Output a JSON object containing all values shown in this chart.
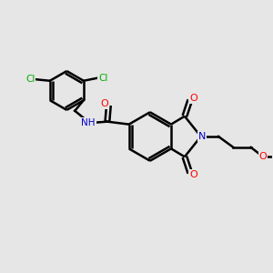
{
  "background_color": "#e6e6e6",
  "bond_color": "#000000",
  "bond_width": 1.8,
  "atom_colors": {
    "C": "#000000",
    "N": "#0000cc",
    "O": "#ff0000",
    "Cl": "#00aa00",
    "H": "#000000"
  },
  "figsize": [
    3.0,
    3.0
  ],
  "dpi": 100
}
